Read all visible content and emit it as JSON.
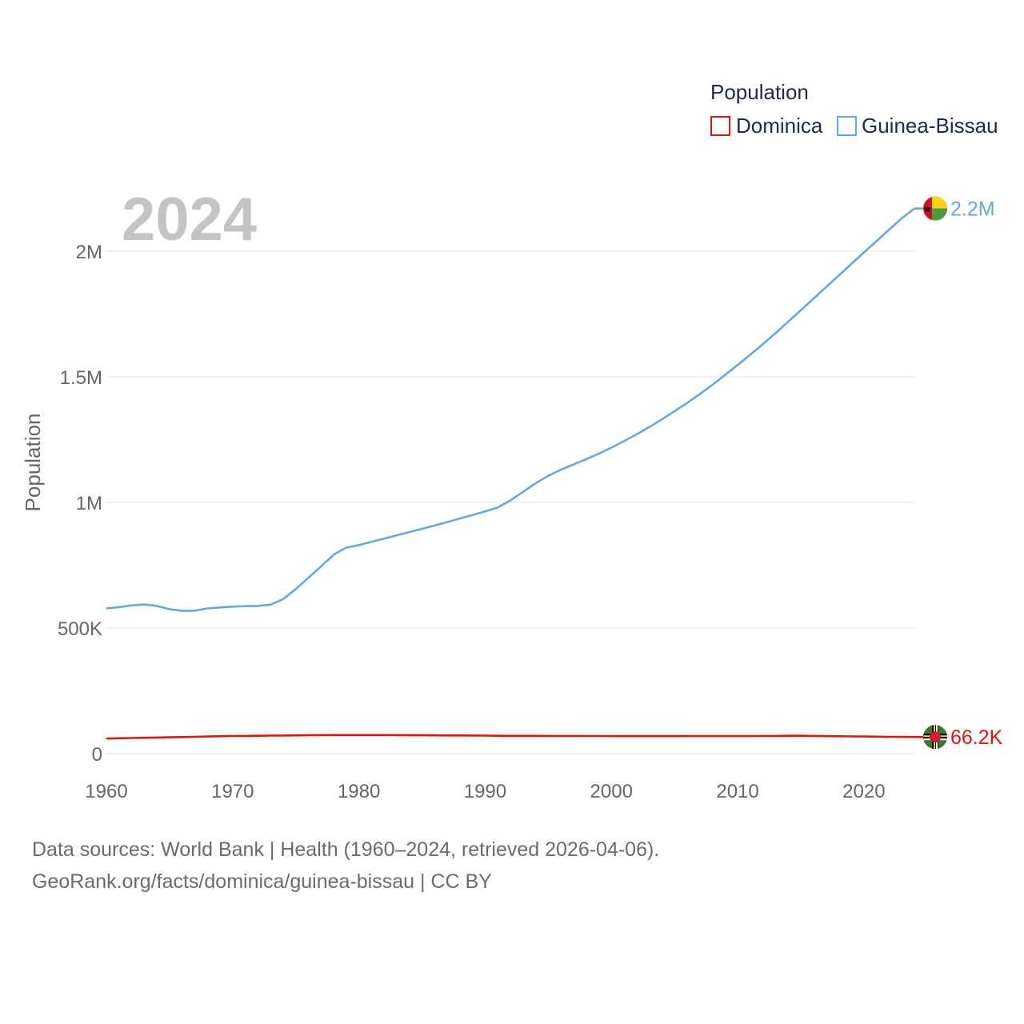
{
  "chart_data": {
    "type": "line",
    "year_label": "2024",
    "ylabel": "Population",
    "xlabel": "",
    "xlim": [
      1960,
      2024
    ],
    "ylim": [
      0,
      2250000
    ],
    "x_ticks": [
      1960,
      1970,
      1980,
      1990,
      2000,
      2010,
      2020
    ],
    "y_ticks": [
      {
        "value": 0,
        "label": "0"
      },
      {
        "value": 500000,
        "label": "500K"
      },
      {
        "value": 1000000,
        "label": "1M"
      },
      {
        "value": 1500000,
        "label": "1.5M"
      },
      {
        "value": 2000000,
        "label": "2M"
      }
    ],
    "legend": {
      "title": "Population",
      "position": "top-right"
    },
    "x": [
      1960,
      1961,
      1962,
      1963,
      1964,
      1965,
      1966,
      1967,
      1968,
      1969,
      1970,
      1971,
      1972,
      1973,
      1974,
      1975,
      1976,
      1977,
      1978,
      1979,
      1980,
      1981,
      1982,
      1983,
      1984,
      1985,
      1986,
      1987,
      1988,
      1989,
      1990,
      1991,
      1992,
      1993,
      1994,
      1995,
      1996,
      1997,
      1998,
      1999,
      2000,
      2001,
      2002,
      2003,
      2004,
      2005,
      2006,
      2007,
      2008,
      2009,
      2010,
      2011,
      2012,
      2013,
      2014,
      2015,
      2016,
      2017,
      2018,
      2019,
      2020,
      2021,
      2022,
      2023,
      2024
    ],
    "series": [
      {
        "name": "Dominica",
        "color": "#e8120c",
        "end_label": "66.2K",
        "flag": "dominica-flag-icon",
        "values": [
          60000,
          61000,
          62000,
          63000,
          64000,
          65000,
          66000,
          67000,
          68000,
          69000,
          70000,
          70500,
          71000,
          71500,
          72000,
          72500,
          73000,
          73500,
          74000,
          74000,
          74000,
          74000,
          73800,
          73500,
          73000,
          72800,
          72600,
          72400,
          72200,
          72000,
          71500,
          71000,
          70800,
          70700,
          70600,
          70500,
          70400,
          70300,
          70200,
          70000,
          69800,
          69500,
          69400,
          69300,
          69400,
          69500,
          69600,
          69700,
          69700,
          69700,
          69800,
          69900,
          70000,
          70500,
          71000,
          71000,
          70500,
          69500,
          69000,
          68500,
          68000,
          67500,
          67000,
          66500,
          66200
        ]
      },
      {
        "name": "Guinea-Bissau",
        "color": "#63a8e4",
        "end_label": "2.2M",
        "flag": "guinea-bissau-flag-icon",
        "values": [
          578000,
          583000,
          590000,
          594000,
          588000,
          575000,
          568000,
          569000,
          578000,
          582000,
          585000,
          587000,
          588000,
          593000,
          615000,
          655000,
          700000,
          745000,
          792000,
          820000,
          830000,
          843000,
          856000,
          869000,
          882000,
          895000,
          908000,
          922000,
          936000,
          950000,
          964000,
          980000,
          1008000,
          1042000,
          1076000,
          1106000,
          1130000,
          1151000,
          1172000,
          1194000,
          1218000,
          1244000,
          1271000,
          1300000,
          1331000,
          1363000,
          1396000,
          1431000,
          1468000,
          1507000,
          1547000,
          1588000,
          1630000,
          1674000,
          1719000,
          1765000,
          1811000,
          1857000,
          1903000,
          1949000,
          1995000,
          2040000,
          2086000,
          2131000,
          2170000
        ]
      }
    ]
  },
  "footer": {
    "line1": "Data sources: World Bank | Health (1960–2024, retrieved 2026-04-06).",
    "line2": "GeoRank.org/facts/dominica/guinea-bissau | CC BY"
  }
}
